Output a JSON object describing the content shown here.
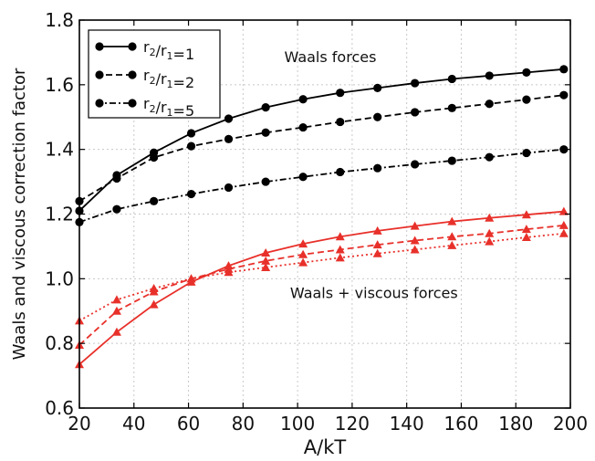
{
  "chart_data": {
    "type": "line",
    "title": "",
    "xlabel": "A/kT",
    "ylabel": "Waals and viscous correction factor",
    "xlim": [
      20,
      200
    ],
    "ylim": [
      0.6,
      1.8
    ],
    "xticks": [
      20,
      40,
      60,
      80,
      100,
      120,
      140,
      160,
      180,
      200
    ],
    "yticks": [
      0.6,
      0.8,
      1.0,
      1.2,
      1.4,
      1.6,
      1.8
    ],
    "xtick_labels": [
      "20",
      "40",
      "60",
      "80",
      "100",
      "120",
      "140",
      "160",
      "180",
      "200"
    ],
    "ytick_labels": [
      "0.6",
      "0.8",
      "1.0",
      "1.2",
      "1.4",
      "1.6",
      "1.8"
    ],
    "grid": true,
    "legend_position": "top-left",
    "legend": [
      {
        "r": "r",
        "sub_a": "2",
        "slash": "/",
        "sub_b": "1",
        "eq": "=1",
        "style": "solid"
      },
      {
        "r": "r",
        "sub_a": "2",
        "slash": "/",
        "sub_b": "1",
        "eq": "=2",
        "style": "dashed"
      },
      {
        "r": "r",
        "sub_a": "2",
        "slash": "/",
        "sub_b": "1",
        "eq": "=5",
        "style": "dashdot"
      }
    ],
    "annotations": [
      {
        "text": "Waals forces",
        "x": 112,
        "y": 1.67
      },
      {
        "text": "Waals + viscous forces",
        "x": 128,
        "y": 0.94
      }
    ],
    "series": [
      {
        "group": "Waals forces",
        "ratio": 1,
        "color": "#000000",
        "style": "solid",
        "marker": "circle",
        "x": [
          20,
          33.7,
          47.3,
          61,
          74.7,
          88.3,
          102,
          115.6,
          129.3,
          143,
          156.6,
          170.3,
          183.9,
          197.6
        ],
        "y": [
          1.21,
          1.32,
          1.39,
          1.45,
          1.495,
          1.53,
          1.555,
          1.575,
          1.59,
          1.605,
          1.618,
          1.628,
          1.638,
          1.648
        ]
      },
      {
        "group": "Waals forces",
        "ratio": 2,
        "color": "#000000",
        "style": "dashed",
        "marker": "circle",
        "x": [
          20,
          33.7,
          47.3,
          61,
          74.7,
          88.3,
          102,
          115.6,
          129.3,
          143,
          156.6,
          170.3,
          183.9,
          197.6
        ],
        "y": [
          1.24,
          1.31,
          1.375,
          1.41,
          1.432,
          1.452,
          1.468,
          1.485,
          1.5,
          1.515,
          1.528,
          1.541,
          1.554,
          1.568
        ]
      },
      {
        "group": "Waals forces",
        "ratio": 5,
        "color": "#000000",
        "style": "dashdot",
        "marker": "circle",
        "x": [
          20,
          33.7,
          47.3,
          61,
          74.7,
          88.3,
          102,
          115.6,
          129.3,
          143,
          156.6,
          170.3,
          183.9,
          197.6
        ],
        "y": [
          1.175,
          1.215,
          1.24,
          1.262,
          1.282,
          1.3,
          1.315,
          1.33,
          1.342,
          1.354,
          1.365,
          1.376,
          1.389,
          1.4
        ]
      },
      {
        "group": "Waals + viscous forces",
        "ratio": 1,
        "color": "#e8302a",
        "style": "solid",
        "marker": "triangle",
        "x": [
          20,
          33.7,
          47.3,
          61,
          74.7,
          88.3,
          102,
          115.6,
          129.3,
          143,
          156.6,
          170.3,
          183.9,
          197.6
        ],
        "y": [
          0.735,
          0.835,
          0.92,
          0.99,
          1.04,
          1.08,
          1.108,
          1.13,
          1.148,
          1.163,
          1.177,
          1.188,
          1.198,
          1.208
        ]
      },
      {
        "group": "Waals + viscous forces",
        "ratio": 2,
        "color": "#e8302a",
        "style": "dashed",
        "marker": "triangle",
        "x": [
          20,
          33.7,
          47.3,
          61,
          74.7,
          88.3,
          102,
          115.6,
          129.3,
          143,
          156.6,
          170.3,
          183.9,
          197.6
        ],
        "y": [
          0.795,
          0.9,
          0.96,
          1.0,
          1.03,
          1.055,
          1.075,
          1.09,
          1.105,
          1.118,
          1.13,
          1.14,
          1.153,
          1.165
        ]
      },
      {
        "group": "Waals + viscous forces",
        "ratio": 5,
        "color": "#e8302a",
        "style": "dotted",
        "marker": "triangle",
        "x": [
          20,
          33.7,
          47.3,
          61,
          74.7,
          88.3,
          102,
          115.6,
          129.3,
          143,
          156.6,
          170.3,
          183.9,
          197.6
        ],
        "y": [
          0.87,
          0.935,
          0.97,
          1.0,
          1.02,
          1.035,
          1.05,
          1.065,
          1.078,
          1.09,
          1.103,
          1.115,
          1.128,
          1.14
        ]
      }
    ]
  }
}
